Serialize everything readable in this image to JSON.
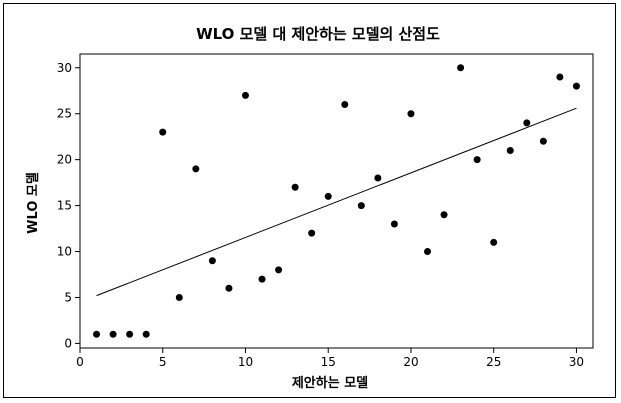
{
  "chart_data": {
    "type": "scatter",
    "title": "WLO 모델 대 제안하는 모델의 산점도",
    "xlabel": "제안하는 모델",
    "ylabel": "WLO 모델",
    "xlim": [
      0,
      31
    ],
    "ylim": [
      -0.5,
      31.5
    ],
    "x_ticks": [
      0,
      5,
      10,
      15,
      20,
      25,
      30
    ],
    "y_ticks": [
      0,
      5,
      10,
      15,
      20,
      25,
      30
    ],
    "grid": false,
    "points": {
      "x": [
        1,
        2,
        3,
        4,
        5,
        6,
        7,
        8,
        9,
        10,
        11,
        12,
        13,
        14,
        15,
        16,
        17,
        18,
        19,
        20,
        21,
        22,
        23,
        24,
        25,
        26,
        27,
        28,
        29,
        30
      ],
      "y": [
        1,
        1,
        1,
        1,
        23,
        5,
        19,
        9,
        6,
        27,
        7,
        8,
        17,
        12,
        16,
        26,
        15,
        18,
        13,
        25,
        10,
        14,
        30,
        20,
        11,
        21,
        24,
        22,
        29,
        28
      ]
    },
    "trend_line": {
      "x": [
        1,
        30
      ],
      "y": [
        5.2,
        25.6
      ]
    },
    "colors": {
      "points": "#000000",
      "line": "#000000"
    }
  }
}
